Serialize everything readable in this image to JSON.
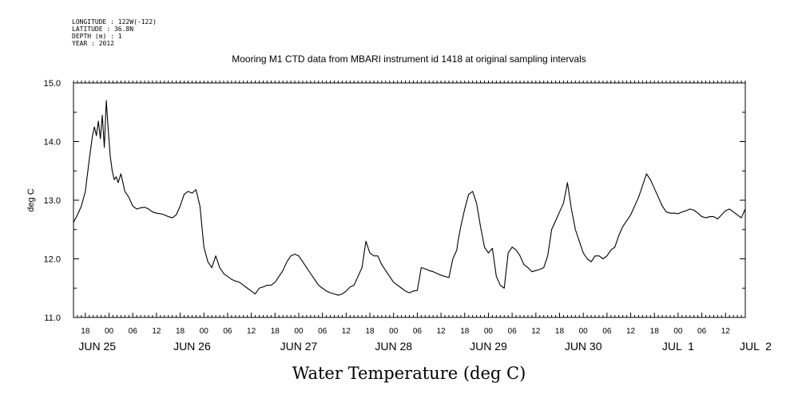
{
  "header": {
    "longitude": "LONGITUDE : 122W(-122)",
    "latitude": "LATITUDE : 36.8N",
    "depth": "DEPTH (m) : 1",
    "year": "YEAR : 2012"
  },
  "chart_data": {
    "type": "line",
    "title": "Mooring M1 CTD data from MBARI instrument id 1418 at original sampling intervals",
    "ylabel": "deg C",
    "xlabel": "Water Temperature (deg C)",
    "ylim": [
      11.0,
      15.0
    ],
    "xlim": [
      15.0,
      185.0
    ],
    "x_unit": "hours since 2012-06-24 00:00",
    "yticks": [
      11.0,
      12.0,
      13.0,
      14.0,
      15.0
    ],
    "ytick_labels": [
      "11.0",
      "12.0",
      "13.0",
      "14.0",
      "15.0"
    ],
    "xtick_hours": [
      18,
      24,
      30,
      36,
      42,
      48,
      54,
      60,
      66,
      72,
      78,
      84,
      90,
      96,
      102,
      108,
      114,
      120,
      126,
      132,
      138,
      144,
      150,
      156,
      162,
      168,
      174,
      180
    ],
    "xtick_labels": [
      "18",
      "00",
      "06",
      "12",
      "18",
      "00",
      "06",
      "12",
      "18",
      "00",
      "06",
      "12",
      "18",
      "00",
      "06",
      "12",
      "18",
      "00",
      "06",
      "12",
      "18",
      "00",
      "06",
      "12",
      "18",
      "00",
      "06",
      "12"
    ],
    "date_labels": [
      {
        "hour": 21,
        "text": "JUN 25"
      },
      {
        "hour": 45,
        "text": "JUN 26"
      },
      {
        "hour": 72,
        "text": "JUN 27"
      },
      {
        "hour": 96,
        "text": "JUN 28"
      },
      {
        "hour": 120,
        "text": "JUN 29"
      },
      {
        "hour": 144,
        "text": "JUN 30"
      },
      {
        "hour": 168,
        "text": "JUL  1"
      },
      {
        "hour": 189,
        "text": "JUL  2"
      }
    ],
    "grid": false,
    "series": [
      {
        "x": [
          15,
          16,
          17,
          18,
          19,
          19.8,
          20.3,
          20.8,
          21.3,
          21.8,
          22.3,
          22.8,
          23.3,
          23.8,
          24.3,
          24.8,
          25.3,
          25.8,
          26.3,
          27,
          28,
          29,
          30,
          31,
          32,
          33,
          34,
          35,
          36,
          37,
          38,
          39,
          40,
          41,
          42,
          43,
          44,
          45,
          46,
          47,
          48,
          49,
          50,
          51,
          52,
          53,
          54,
          55,
          56,
          57,
          58,
          59,
          60,
          61,
          62,
          63,
          64,
          65,
          66,
          67,
          68,
          69,
          70,
          71,
          72,
          73,
          74,
          75,
          76,
          77,
          78,
          79,
          80,
          81,
          82,
          83,
          84,
          85,
          86,
          87,
          88,
          89,
          90,
          91,
          92,
          93,
          94,
          95,
          96,
          97,
          98,
          99,
          100,
          101,
          102,
          103,
          104,
          105,
          106,
          107,
          108,
          109,
          110,
          111,
          112,
          112.3,
          113,
          114,
          115,
          116,
          117,
          118,
          119,
          120,
          121,
          122,
          123,
          124,
          125,
          126,
          127,
          128,
          129,
          130,
          131,
          132,
          133,
          134,
          135,
          136,
          137,
          138,
          139,
          140,
          141,
          142,
          143,
          144,
          145,
          146,
          147,
          148,
          149,
          150,
          151,
          152,
          153,
          154,
          155,
          156,
          157,
          158,
          159,
          160,
          161,
          162,
          163,
          164,
          165,
          166,
          167,
          168,
          169,
          170,
          171,
          172,
          173,
          174,
          175,
          176,
          177,
          178,
          179,
          180,
          181,
          182,
          183,
          184,
          185
        ],
        "y": [
          12.62,
          12.75,
          12.9,
          13.15,
          13.7,
          14.1,
          14.25,
          14.1,
          14.35,
          14.05,
          14.45,
          13.9,
          14.7,
          14.2,
          13.75,
          13.5,
          13.35,
          13.4,
          13.3,
          13.45,
          13.15,
          13.05,
          12.9,
          12.85,
          12.87,
          12.88,
          12.85,
          12.8,
          12.78,
          12.77,
          12.75,
          12.72,
          12.7,
          12.75,
          12.9,
          13.1,
          13.15,
          13.12,
          13.18,
          12.9,
          12.2,
          11.95,
          11.85,
          12.05,
          11.85,
          11.75,
          11.7,
          11.65,
          11.62,
          11.6,
          11.55,
          11.5,
          11.45,
          11.4,
          11.5,
          11.52,
          11.55,
          11.55,
          11.6,
          11.7,
          11.8,
          11.95,
          12.05,
          12.08,
          12.05,
          11.95,
          11.85,
          11.75,
          11.65,
          11.55,
          11.5,
          11.45,
          11.42,
          11.4,
          11.38,
          11.4,
          11.45,
          11.52,
          11.55,
          11.7,
          11.85,
          12.3,
          12.1,
          12.05,
          12.05,
          11.9,
          11.8,
          11.7,
          11.6,
          11.55,
          11.5,
          11.45,
          11.42,
          11.45,
          11.46,
          11.85,
          11.83,
          11.8,
          11.78,
          11.75,
          11.72,
          11.7,
          11.68,
          12.0,
          12.15,
          12.3,
          12.55,
          12.85,
          13.1,
          13.15,
          12.95,
          12.55,
          12.2,
          12.1,
          12.18,
          11.7,
          11.55,
          11.5,
          12.1,
          12.2,
          12.15,
          12.05,
          11.9,
          11.85,
          11.78,
          11.8,
          11.82,
          11.85,
          12.05,
          12.5,
          12.65,
          12.8,
          12.95,
          13.3,
          12.85,
          12.5,
          12.3,
          12.1,
          12.0,
          11.95,
          12.05,
          12.05,
          12.0,
          12.05,
          12.15,
          12.2,
          12.4,
          12.55,
          12.65,
          12.75,
          12.9,
          13.05,
          13.25,
          13.45,
          13.35,
          13.2,
          13.05,
          12.9,
          12.8,
          12.78,
          12.78,
          12.77,
          12.8,
          12.82,
          12.85,
          12.83,
          12.78,
          12.72,
          12.7,
          12.72,
          12.72,
          12.68,
          12.75,
          12.82,
          12.85,
          12.8,
          12.75,
          12.7,
          12.85
        ]
      }
    ]
  }
}
